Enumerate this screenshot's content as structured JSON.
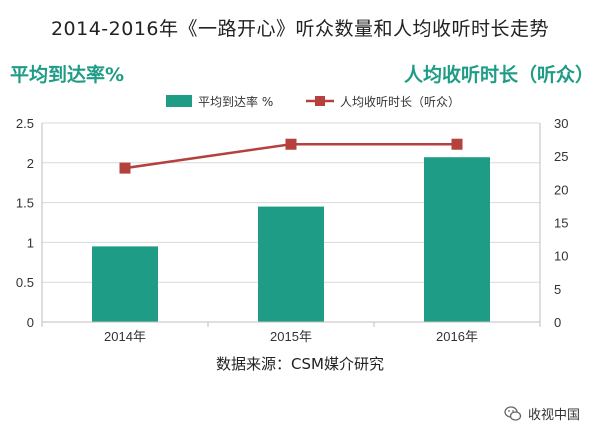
{
  "title": "2014-2016年《一路开心》听众数量和人均收听时长走势",
  "left_axis_title": "平均到达率%",
  "right_axis_title": "人均收听时长（听众）",
  "source": "数据来源：CSM媒介研究",
  "watermark": "收视中国",
  "watermark_icon": "wechat-icon",
  "colors": {
    "bar": "#1f9c86",
    "line": "#b5413c",
    "accent_text": "#1f9c86",
    "grid": "#d9d9d9"
  },
  "chart_data": {
    "type": "bar+line",
    "categories": [
      "2014年",
      "2015年",
      "2016年"
    ],
    "series": [
      {
        "name": "平均到达率 %",
        "type": "bar",
        "axis": "left",
        "values": [
          0.95,
          1.45,
          2.07
        ]
      },
      {
        "name": "人均收听时长（听众）",
        "type": "line",
        "axis": "right",
        "values": [
          23.2,
          26.8,
          26.8
        ]
      }
    ],
    "y_left": {
      "min": 0,
      "max": 2.5,
      "ticks": [
        "0",
        "0.5",
        "1",
        "1.5",
        "2",
        "2.5"
      ]
    },
    "y_right": {
      "min": 0,
      "max": 30,
      "ticks": [
        "0",
        "5",
        "10",
        "15",
        "20",
        "25",
        "30"
      ]
    },
    "legend_position": "top-center",
    "grid": true
  }
}
